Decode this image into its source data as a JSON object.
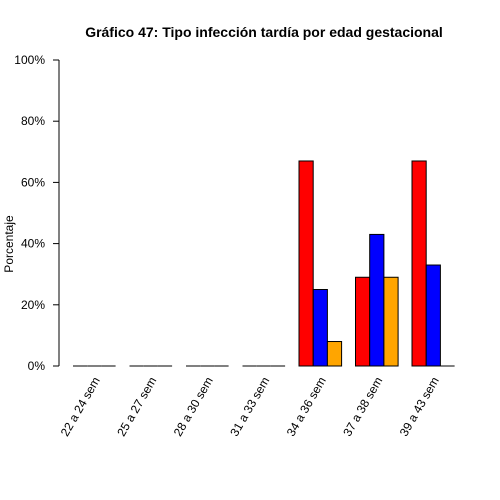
{
  "chart_data": {
    "type": "bar",
    "title": "Gráfico 47: Tipo infección tardía por edad gestacional",
    "xlabel": "",
    "ylabel": "Porcentaje",
    "ylim": [
      0,
      100
    ],
    "y_ticks": [
      "0%",
      "20%",
      "40%",
      "60%",
      "80%",
      "100%"
    ],
    "y_tick_values": [
      0,
      20,
      40,
      60,
      80,
      100
    ],
    "categories": [
      "22 a 24 sem",
      "25 a 27 sem",
      "28 a 30 sem",
      "31 a 33 sem",
      "34 a 36 sem",
      "37 a 38 sem",
      "39 a 43 sem"
    ],
    "series": [
      {
        "color": "#ff0000",
        "values": [
          0,
          0,
          0,
          0,
          67,
          29,
          67
        ]
      },
      {
        "color": "#0000ff",
        "values": [
          0,
          0,
          0,
          0,
          25,
          43,
          33
        ]
      },
      {
        "color": "#ffa500",
        "values": [
          0,
          0,
          0,
          0,
          8,
          29,
          0
        ]
      }
    ],
    "grid": false,
    "legend": "none"
  }
}
